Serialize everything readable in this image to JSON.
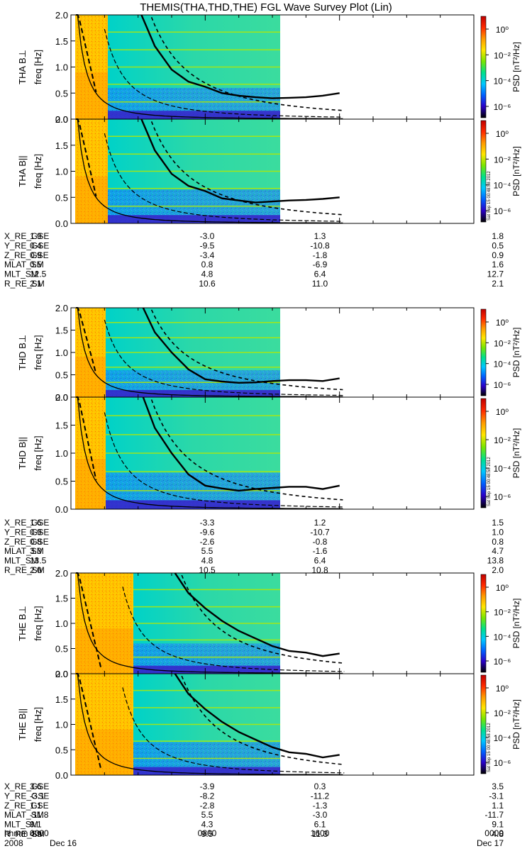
{
  "title": "THEMIS(THA,THD,THE) FGL Wave Survey Plot (Lin)",
  "colorbar": {
    "label": "PSD [nT²/Hz]",
    "tick_labels": [
      "10⁰",
      "10⁻²",
      "10⁻⁴",
      "10⁻⁶"
    ],
    "colors": [
      "#000000",
      "#2b00c8",
      "#0060ff",
      "#00c8ff",
      "#00e08a",
      "#78e600",
      "#ffe600",
      "#ff9a00",
      "#ff2a00",
      "#c00000"
    ]
  },
  "timestamp": "Sat Sep 15 00:48:58 2012",
  "footer": {
    "hhmm_label": "hhmm",
    "year_label": "2008",
    "time_ticks": [
      "0000",
      "0800",
      "1600",
      "0000"
    ],
    "date_left": "Dec 16",
    "date_right": "Dec 17"
  },
  "chart_data": [
    {
      "type": "heatmap",
      "panel": "THA B⊥",
      "ylabel": "THA B⊥",
      "ylabel2": "freq [Hz]",
      "ylim": [
        0,
        2.0
      ],
      "y_ticks": [
        "0.0",
        "0.5",
        "1.0",
        "1.5",
        "2.0"
      ],
      "solid_line": [
        [
          4.2,
          2.0
        ],
        [
          5,
          1.4
        ],
        [
          6,
          0.95
        ],
        [
          7,
          0.72
        ],
        [
          8,
          0.62
        ],
        [
          9,
          0.5
        ],
        [
          10,
          0.45
        ],
        [
          11,
          0.42
        ],
        [
          12,
          0.4
        ],
        [
          13,
          0.41
        ],
        [
          14,
          0.42
        ],
        [
          15,
          0.45
        ],
        [
          16,
          0.5
        ]
      ]
    },
    {
      "type": "heatmap",
      "panel": "THA B||",
      "ylabel": "THA B||",
      "ylabel2": "freq [Hz]",
      "ylim": [
        0,
        2.0
      ],
      "y_ticks": [
        "0.0",
        "0.5",
        "1.0",
        "1.5",
        "2.0"
      ],
      "solid_line": [
        [
          4.2,
          2.0
        ],
        [
          5,
          1.4
        ],
        [
          6,
          0.95
        ],
        [
          7,
          0.72
        ],
        [
          8,
          0.62
        ],
        [
          9,
          0.48
        ],
        [
          10,
          0.44
        ],
        [
          11,
          0.4
        ],
        [
          12,
          0.42
        ],
        [
          13,
          0.44
        ],
        [
          14,
          0.45
        ],
        [
          15,
          0.47
        ],
        [
          16,
          0.5
        ]
      ]
    },
    {
      "type": "heatmap",
      "panel": "THD B⊥",
      "ylabel": "THD B⊥",
      "ylabel2": "freq [Hz]",
      "ylim": [
        0,
        2.0
      ],
      "y_ticks": [
        "0.0",
        "0.5",
        "1.0",
        "1.5",
        "2.0"
      ],
      "solid_line": [
        [
          4.3,
          2.0
        ],
        [
          5,
          1.45
        ],
        [
          6,
          1.0
        ],
        [
          7,
          0.62
        ],
        [
          8,
          0.4
        ],
        [
          9,
          0.35
        ],
        [
          10,
          0.32
        ],
        [
          11,
          0.33
        ],
        [
          12,
          0.36
        ],
        [
          13,
          0.38
        ],
        [
          14,
          0.38
        ],
        [
          15,
          0.36
        ],
        [
          16,
          0.42
        ]
      ]
    },
    {
      "type": "heatmap",
      "panel": "THD B||",
      "ylabel": "THD B||",
      "ylabel2": "freq [Hz]",
      "ylim": [
        0,
        2.0
      ],
      "y_ticks": [
        "0.0",
        "0.5",
        "1.0",
        "1.5",
        "2.0"
      ],
      "solid_line": [
        [
          4.3,
          2.0
        ],
        [
          5,
          1.45
        ],
        [
          6,
          1.0
        ],
        [
          7,
          0.62
        ],
        [
          8,
          0.42
        ],
        [
          9,
          0.37
        ],
        [
          10,
          0.33
        ],
        [
          11,
          0.36
        ],
        [
          12,
          0.38
        ],
        [
          13,
          0.4
        ],
        [
          14,
          0.4
        ],
        [
          15,
          0.36
        ],
        [
          16,
          0.42
        ]
      ]
    },
    {
      "type": "heatmap",
      "panel": "THE B⊥",
      "ylabel": "THE B⊥",
      "ylabel2": "freq [Hz]",
      "ylim": [
        0,
        2.0
      ],
      "y_ticks": [
        "0.0",
        "0.5",
        "1.0",
        "1.5",
        "2.0"
      ],
      "solid_line": [
        [
          6.2,
          2.0
        ],
        [
          7,
          1.6
        ],
        [
          8,
          1.3
        ],
        [
          9,
          1.05
        ],
        [
          10,
          0.85
        ],
        [
          11,
          0.7
        ],
        [
          12,
          0.55
        ],
        [
          13,
          0.45
        ],
        [
          14,
          0.42
        ],
        [
          15,
          0.35
        ],
        [
          16,
          0.4
        ]
      ]
    },
    {
      "type": "heatmap",
      "panel": "THE B||",
      "ylabel": "THE B||",
      "ylabel2": "freq [Hz]",
      "ylim": [
        0,
        2.0
      ],
      "y_ticks": [
        "0.0",
        "0.5",
        "1.0",
        "1.5",
        "2.0"
      ],
      "solid_line": [
        [
          6.2,
          2.0
        ],
        [
          7,
          1.6
        ],
        [
          8,
          1.3
        ],
        [
          9,
          1.05
        ],
        [
          10,
          0.85
        ],
        [
          11,
          0.7
        ],
        [
          12,
          0.55
        ],
        [
          13,
          0.45
        ],
        [
          14,
          0.42
        ],
        [
          15,
          0.35
        ],
        [
          16,
          0.4
        ]
      ]
    }
  ],
  "orbit_tables": [
    {
      "rows": [
        {
          "label": "X_RE_GSE",
          "values": [
            "1.9",
            "-3.0",
            "1.3",
            "1.8"
          ]
        },
        {
          "label": "Y_RE_GSE",
          "values": [
            "0.4",
            "-9.5",
            "-10.8",
            "0.5"
          ]
        },
        {
          "label": "Z_RE_GSE",
          "values": [
            "0.9",
            "-3.4",
            "-1.8",
            "0.9"
          ]
        },
        {
          "label": "MLAT_SM",
          "values": [
            "0.5",
            "0.8",
            "-6.9",
            "1.6"
          ]
        },
        {
          "label": "MLT_SM",
          "values": [
            "12.5",
            "4.8",
            "6.4",
            "12.7"
          ]
        },
        {
          "label": "R_RE_SM",
          "values": [
            "2.1",
            "10.6",
            "11.0",
            "2.1"
          ]
        }
      ]
    },
    {
      "rows": [
        {
          "label": "X_RE_GSE",
          "values": [
            "1.6",
            "-3.3",
            "1.2",
            "1.5"
          ]
        },
        {
          "label": "Y_RE_GSE",
          "values": [
            "0.9",
            "-9.6",
            "-10.7",
            "1.0"
          ]
        },
        {
          "label": "Z_RE_GSE",
          "values": [
            "0.8",
            "-2.6",
            "-0.8",
            "0.8"
          ]
        },
        {
          "label": "MLAT_SM",
          "values": [
            "3.3",
            "5.5",
            "-1.6",
            "4.7"
          ]
        },
        {
          "label": "MLT_SM",
          "values": [
            "13.5",
            "4.8",
            "6.4",
            "13.8"
          ]
        },
        {
          "label": "R_RE_SM",
          "values": [
            "2.0",
            "10.5",
            "10.8",
            "2.0"
          ]
        }
      ]
    },
    {
      "rows": [
        {
          "label": "X_RE_GSE",
          "values": [
            "3.6",
            "-3.9",
            "0.3",
            "3.5"
          ]
        },
        {
          "label": "Y_RE_GSE",
          "values": [
            "-3.1",
            "-8.2",
            "-11.2",
            "-3.1"
          ]
        },
        {
          "label": "Z_RE_GSE",
          "values": [
            "1.1",
            "-2.8",
            "-1.3",
            "1.1"
          ]
        },
        {
          "label": "MLAT_SM",
          "values": [
            "-11.8",
            "5.5",
            "-3.0",
            "-11.7"
          ]
        },
        {
          "label": "MLT_SM",
          "values": [
            "9.1",
            "4.3",
            "6.1",
            "9.1"
          ]
        },
        {
          "label": "R_RE_SM",
          "values": [
            "4.9",
            "9.5",
            "11.3",
            "4.8"
          ]
        }
      ]
    }
  ]
}
